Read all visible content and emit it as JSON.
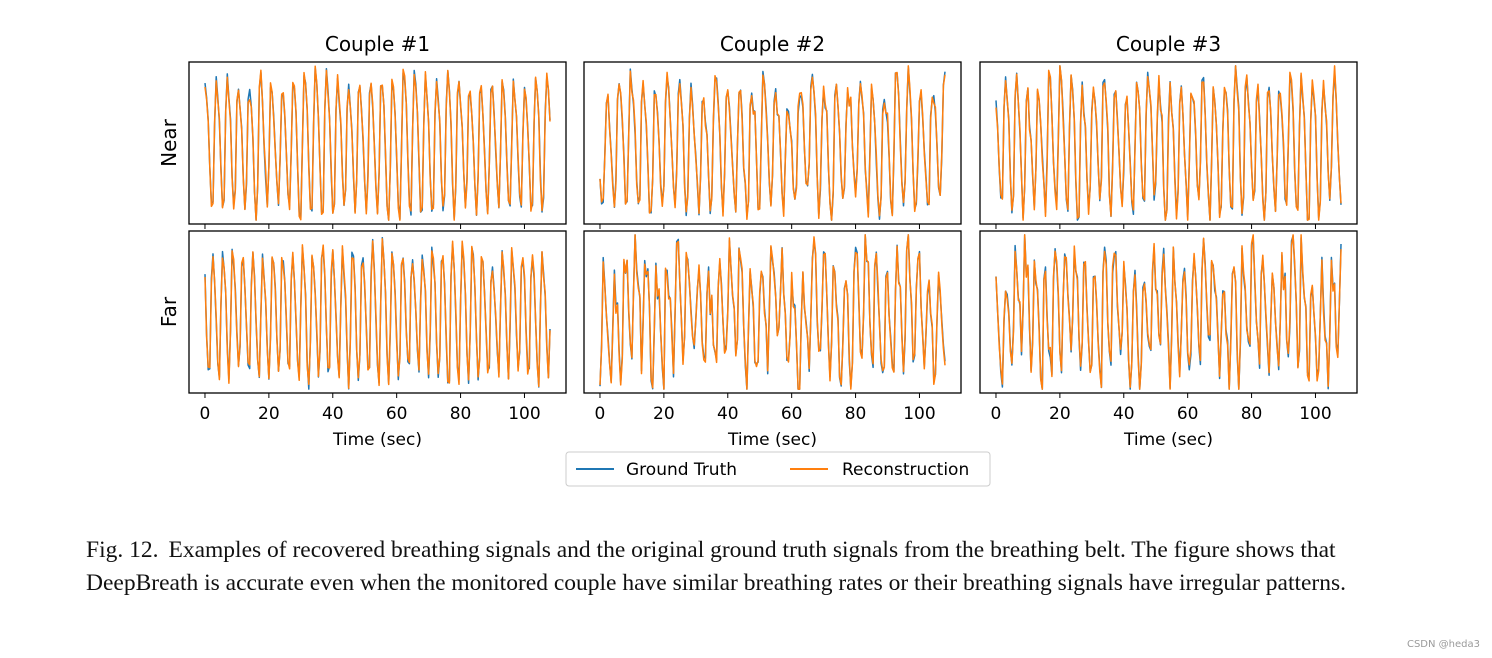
{
  "chart_data": {
    "type": "line",
    "grid": false,
    "legend_position": "bottom-center",
    "legend": [
      {
        "name": "Ground Truth",
        "color": "#1f77b4"
      },
      {
        "name": "Reconstruction",
        "color": "#ff7f0e"
      }
    ],
    "columns": [
      "Couple #1",
      "Couple #2",
      "Couple #3"
    ],
    "rows": [
      "Near",
      "Far"
    ],
    "xlabel": "Time (sec)",
    "xlim": [
      -5,
      113
    ],
    "ylim": [
      -1.05,
      1.05
    ],
    "xticks": [
      0,
      20,
      40,
      60,
      80,
      100
    ],
    "sample_rate_per_sec": 2,
    "duration_sec": 108,
    "panels": [
      {
        "id": "c1-near",
        "title": "Couple #1",
        "row": "Near",
        "breaths_per_min": 17.4,
        "phase": 0.15,
        "amplitude": 0.86,
        "seed": 11,
        "irregularity": 0.1
      },
      {
        "id": "c2-near",
        "title": "Couple #2",
        "row": "Near",
        "breaths_per_min": 15.9,
        "phase": 0.6,
        "amplitude": 0.8,
        "seed": 23,
        "irregularity": 0.3
      },
      {
        "id": "c3-near",
        "title": "Couple #3",
        "row": "Near",
        "breaths_per_min": 17.5,
        "phase": 0.3,
        "amplitude": 0.82,
        "seed": 37,
        "irregularity": 0.25
      },
      {
        "id": "c1-far",
        "title": "Couple #1",
        "row": "Far",
        "breaths_per_min": 19.2,
        "phase": 0.4,
        "amplitude": 0.86,
        "seed": 41,
        "irregularity": 0.1
      },
      {
        "id": "c2-far",
        "title": "Couple #2",
        "row": "Far",
        "breaths_per_min": 18.3,
        "phase": 0.8,
        "amplitude": 0.7,
        "seed": 53,
        "irregularity": 0.6
      },
      {
        "id": "c3-far",
        "title": "Couple #3",
        "row": "Far",
        "breaths_per_min": 19.4,
        "phase": 0.2,
        "amplitude": 0.7,
        "seed": 67,
        "irregularity": 0.55
      }
    ]
  },
  "caption": {
    "label": "Fig. 12.",
    "text": "Examples of recovered breathing signals and the original ground truth signals from the breathing belt. The figure shows that DeepBreath is accurate even when the monitored couple have similar breathing rates or their breathing signals have irregular patterns."
  },
  "watermark": "CSDN @heda3"
}
